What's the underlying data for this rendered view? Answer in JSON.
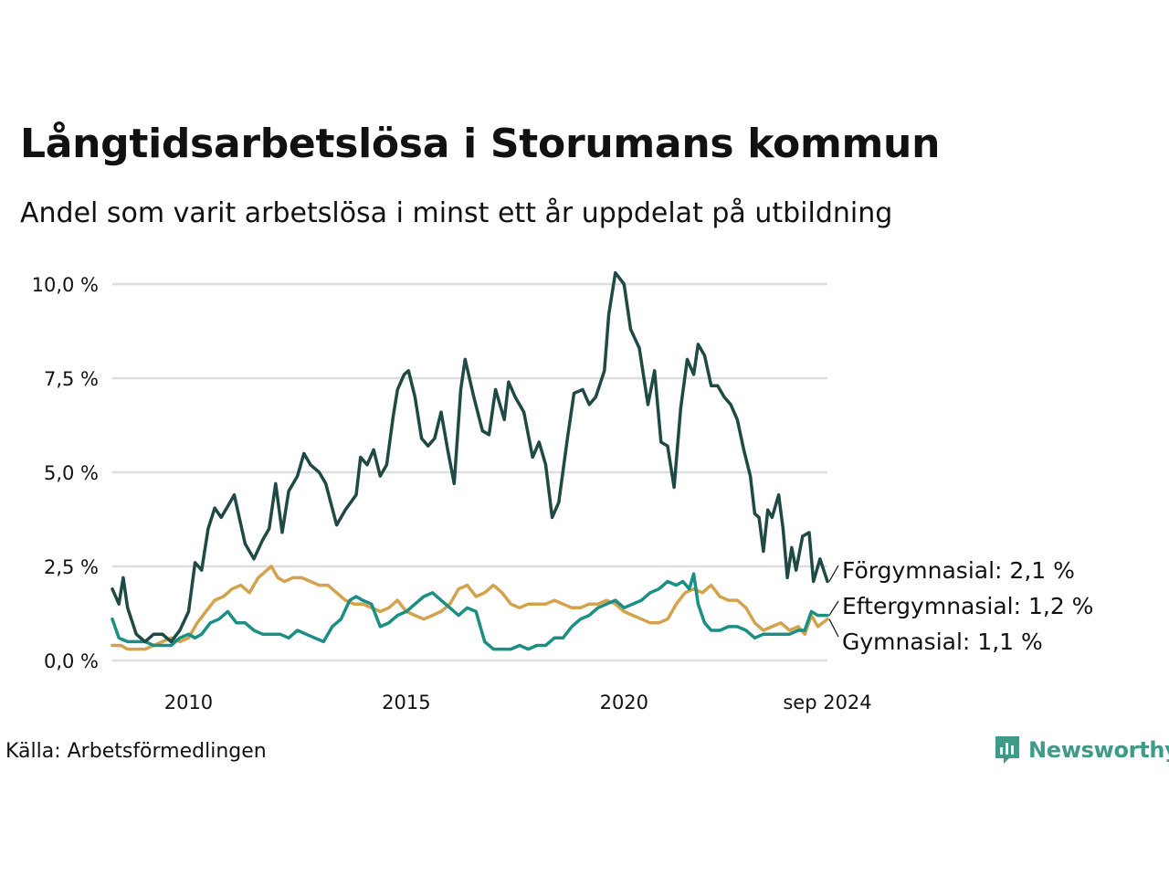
{
  "title": "Långtidsarbetslösa i Storumans kommun",
  "subtitle": "Andel som varit arbetslösa i minst ett år uppdelat på utbildning",
  "source": "Källa: Arbetsförmedlingen",
  "brand": "Newsworthy",
  "colors": {
    "brand": "#3f9a87",
    "grid": "#dddddd"
  },
  "chart_data": {
    "type": "line",
    "x_unit": "decimal year",
    "xlim": [
      2008.25,
      2024.67
    ],
    "xticks": [
      {
        "value": 2010,
        "label": "2010"
      },
      {
        "value": 2015,
        "label": "2015"
      },
      {
        "value": 2020,
        "label": "2020"
      },
      {
        "value": 2024.67,
        "label": "sep 2024"
      }
    ],
    "ylim": [
      0,
      10
    ],
    "yticks": [
      {
        "value": 0,
        "label": "0,0 %"
      },
      {
        "value": 2.5,
        "label": "2,5 %"
      },
      {
        "value": 5,
        "label": "5,0 %"
      },
      {
        "value": 7.5,
        "label": "7,5 %"
      },
      {
        "value": 10,
        "label": "10,0 %"
      }
    ],
    "grid": true,
    "series": [
      {
        "name": "Förgymnasial",
        "label": "Förgymnasial: 2,1 %",
        "color": "#1f4a44",
        "points": [
          [
            2008.25,
            1.9
          ],
          [
            2008.4,
            1.5
          ],
          [
            2008.5,
            2.2
          ],
          [
            2008.6,
            1.4
          ],
          [
            2008.8,
            0.7
          ],
          [
            2009.0,
            0.5
          ],
          [
            2009.2,
            0.7
          ],
          [
            2009.4,
            0.7
          ],
          [
            2009.6,
            0.5
          ],
          [
            2009.8,
            0.8
          ],
          [
            2010.0,
            1.3
          ],
          [
            2010.15,
            2.6
          ],
          [
            2010.3,
            2.4
          ],
          [
            2010.45,
            3.5
          ],
          [
            2010.6,
            4.05
          ],
          [
            2010.75,
            3.8
          ],
          [
            2010.9,
            4.1
          ],
          [
            2011.05,
            4.4
          ],
          [
            2011.3,
            3.1
          ],
          [
            2011.5,
            2.7
          ],
          [
            2011.7,
            3.2
          ],
          [
            2011.85,
            3.5
          ],
          [
            2012.0,
            4.7
          ],
          [
            2012.15,
            3.4
          ],
          [
            2012.3,
            4.5
          ],
          [
            2012.5,
            4.9
          ],
          [
            2012.65,
            5.5
          ],
          [
            2012.8,
            5.2
          ],
          [
            2013.0,
            5.0
          ],
          [
            2013.15,
            4.7
          ],
          [
            2013.4,
            3.6
          ],
          [
            2013.6,
            4.0
          ],
          [
            2013.85,
            4.4
          ],
          [
            2013.95,
            5.4
          ],
          [
            2014.1,
            5.2
          ],
          [
            2014.25,
            5.6
          ],
          [
            2014.4,
            4.9
          ],
          [
            2014.55,
            5.2
          ],
          [
            2014.7,
            6.5
          ],
          [
            2014.8,
            7.2
          ],
          [
            2014.95,
            7.6
          ],
          [
            2015.05,
            7.7
          ],
          [
            2015.2,
            7.0
          ],
          [
            2015.35,
            5.9
          ],
          [
            2015.5,
            5.7
          ],
          [
            2015.65,
            5.9
          ],
          [
            2015.8,
            6.6
          ],
          [
            2015.95,
            5.6
          ],
          [
            2016.1,
            4.7
          ],
          [
            2016.25,
            7.2
          ],
          [
            2016.35,
            8.0
          ],
          [
            2016.55,
            7.0
          ],
          [
            2016.75,
            6.1
          ],
          [
            2016.9,
            6.0
          ],
          [
            2017.05,
            7.2
          ],
          [
            2017.25,
            6.4
          ],
          [
            2017.35,
            7.4
          ],
          [
            2017.5,
            7.0
          ],
          [
            2017.7,
            6.6
          ],
          [
            2017.9,
            5.4
          ],
          [
            2018.05,
            5.8
          ],
          [
            2018.2,
            5.2
          ],
          [
            2018.35,
            3.8
          ],
          [
            2018.5,
            4.2
          ],
          [
            2018.7,
            5.9
          ],
          [
            2018.85,
            7.1
          ],
          [
            2019.05,
            7.2
          ],
          [
            2019.2,
            6.8
          ],
          [
            2019.35,
            7.0
          ],
          [
            2019.55,
            7.7
          ],
          [
            2019.65,
            9.2
          ],
          [
            2019.8,
            10.3
          ],
          [
            2020.0,
            10.0
          ],
          [
            2020.15,
            8.8
          ],
          [
            2020.35,
            8.3
          ],
          [
            2020.55,
            6.8
          ],
          [
            2020.7,
            7.7
          ],
          [
            2020.85,
            5.8
          ],
          [
            2021.0,
            5.7
          ],
          [
            2021.15,
            4.6
          ],
          [
            2021.3,
            6.7
          ],
          [
            2021.45,
            8.0
          ],
          [
            2021.6,
            7.6
          ],
          [
            2021.7,
            8.4
          ],
          [
            2021.85,
            8.1
          ],
          [
            2022.0,
            7.3
          ],
          [
            2022.15,
            7.3
          ],
          [
            2022.3,
            7.0
          ],
          [
            2022.45,
            6.8
          ],
          [
            2022.6,
            6.4
          ],
          [
            2022.75,
            5.6
          ],
          [
            2022.9,
            4.9
          ],
          [
            2023.0,
            3.9
          ],
          [
            2023.1,
            3.8
          ],
          [
            2023.2,
            2.9
          ],
          [
            2023.3,
            4.0
          ],
          [
            2023.4,
            3.8
          ],
          [
            2023.55,
            4.4
          ],
          [
            2023.65,
            3.5
          ],
          [
            2023.75,
            2.2
          ],
          [
            2023.85,
            3.0
          ],
          [
            2023.95,
            2.4
          ],
          [
            2024.1,
            3.3
          ],
          [
            2024.25,
            3.4
          ],
          [
            2024.35,
            2.1
          ],
          [
            2024.5,
            2.7
          ],
          [
            2024.67,
            2.1
          ]
        ]
      },
      {
        "name": "Eftergymnasial",
        "label": "Eftergymnasial: 1,2 %",
        "color": "#1a8f83",
        "points": [
          [
            2008.25,
            1.1
          ],
          [
            2008.4,
            0.6
          ],
          [
            2008.6,
            0.5
          ],
          [
            2008.8,
            0.5
          ],
          [
            2009.0,
            0.5
          ],
          [
            2009.2,
            0.4
          ],
          [
            2009.4,
            0.4
          ],
          [
            2009.6,
            0.4
          ],
          [
            2009.8,
            0.6
          ],
          [
            2010.0,
            0.7
          ],
          [
            2010.15,
            0.6
          ],
          [
            2010.3,
            0.7
          ],
          [
            2010.5,
            1.0
          ],
          [
            2010.7,
            1.1
          ],
          [
            2010.9,
            1.3
          ],
          [
            2011.1,
            1.0
          ],
          [
            2011.3,
            1.0
          ],
          [
            2011.5,
            0.8
          ],
          [
            2011.7,
            0.7
          ],
          [
            2011.9,
            0.7
          ],
          [
            2012.1,
            0.7
          ],
          [
            2012.3,
            0.6
          ],
          [
            2012.5,
            0.8
          ],
          [
            2012.7,
            0.7
          ],
          [
            2012.9,
            0.6
          ],
          [
            2013.1,
            0.5
          ],
          [
            2013.3,
            0.9
          ],
          [
            2013.5,
            1.1
          ],
          [
            2013.7,
            1.6
          ],
          [
            2013.85,
            1.7
          ],
          [
            2014.0,
            1.6
          ],
          [
            2014.2,
            1.5
          ],
          [
            2014.4,
            0.9
          ],
          [
            2014.6,
            1.0
          ],
          [
            2014.8,
            1.2
          ],
          [
            2015.0,
            1.3
          ],
          [
            2015.2,
            1.5
          ],
          [
            2015.4,
            1.7
          ],
          [
            2015.6,
            1.8
          ],
          [
            2015.8,
            1.6
          ],
          [
            2016.0,
            1.4
          ],
          [
            2016.2,
            1.2
          ],
          [
            2016.4,
            1.4
          ],
          [
            2016.6,
            1.3
          ],
          [
            2016.8,
            0.5
          ],
          [
            2017.0,
            0.3
          ],
          [
            2017.2,
            0.3
          ],
          [
            2017.4,
            0.3
          ],
          [
            2017.6,
            0.4
          ],
          [
            2017.8,
            0.3
          ],
          [
            2018.0,
            0.4
          ],
          [
            2018.2,
            0.4
          ],
          [
            2018.4,
            0.6
          ],
          [
            2018.6,
            0.6
          ],
          [
            2018.8,
            0.9
          ],
          [
            2019.0,
            1.1
          ],
          [
            2019.2,
            1.2
          ],
          [
            2019.4,
            1.4
          ],
          [
            2019.6,
            1.5
          ],
          [
            2019.8,
            1.6
          ],
          [
            2020.0,
            1.4
          ],
          [
            2020.2,
            1.5
          ],
          [
            2020.4,
            1.6
          ],
          [
            2020.6,
            1.8
          ],
          [
            2020.8,
            1.9
          ],
          [
            2021.0,
            2.1
          ],
          [
            2021.2,
            2.0
          ],
          [
            2021.35,
            2.1
          ],
          [
            2021.5,
            1.9
          ],
          [
            2021.6,
            2.3
          ],
          [
            2021.7,
            1.5
          ],
          [
            2021.85,
            1.0
          ],
          [
            2022.0,
            0.8
          ],
          [
            2022.2,
            0.8
          ],
          [
            2022.4,
            0.9
          ],
          [
            2022.6,
            0.9
          ],
          [
            2022.8,
            0.8
          ],
          [
            2023.0,
            0.6
          ],
          [
            2023.2,
            0.7
          ],
          [
            2023.4,
            0.7
          ],
          [
            2023.6,
            0.7
          ],
          [
            2023.8,
            0.7
          ],
          [
            2024.0,
            0.8
          ],
          [
            2024.15,
            0.8
          ],
          [
            2024.3,
            1.3
          ],
          [
            2024.45,
            1.2
          ],
          [
            2024.67,
            1.2
          ]
        ]
      },
      {
        "name": "Gymnasial",
        "label": "Gymnasial: 1,1 %",
        "color": "#d4a24c",
        "points": [
          [
            2008.25,
            0.4
          ],
          [
            2008.45,
            0.4
          ],
          [
            2008.6,
            0.3
          ],
          [
            2008.8,
            0.3
          ],
          [
            2009.0,
            0.3
          ],
          [
            2009.2,
            0.4
          ],
          [
            2009.4,
            0.5
          ],
          [
            2009.6,
            0.6
          ],
          [
            2009.8,
            0.5
          ],
          [
            2010.0,
            0.6
          ],
          [
            2010.2,
            1.0
          ],
          [
            2010.4,
            1.3
          ],
          [
            2010.6,
            1.6
          ],
          [
            2010.8,
            1.7
          ],
          [
            2011.0,
            1.9
          ],
          [
            2011.2,
            2.0
          ],
          [
            2011.4,
            1.8
          ],
          [
            2011.6,
            2.2
          ],
          [
            2011.8,
            2.4
          ],
          [
            2011.9,
            2.5
          ],
          [
            2012.05,
            2.2
          ],
          [
            2012.2,
            2.1
          ],
          [
            2012.4,
            2.2
          ],
          [
            2012.6,
            2.2
          ],
          [
            2012.8,
            2.1
          ],
          [
            2013.0,
            2.0
          ],
          [
            2013.2,
            2.0
          ],
          [
            2013.4,
            1.8
          ],
          [
            2013.6,
            1.6
          ],
          [
            2013.8,
            1.5
          ],
          [
            2014.0,
            1.5
          ],
          [
            2014.2,
            1.4
          ],
          [
            2014.4,
            1.3
          ],
          [
            2014.6,
            1.4
          ],
          [
            2014.8,
            1.6
          ],
          [
            2015.0,
            1.3
          ],
          [
            2015.2,
            1.2
          ],
          [
            2015.4,
            1.1
          ],
          [
            2015.6,
            1.2
          ],
          [
            2015.8,
            1.3
          ],
          [
            2016.0,
            1.5
          ],
          [
            2016.2,
            1.9
          ],
          [
            2016.4,
            2.0
          ],
          [
            2016.6,
            1.7
          ],
          [
            2016.8,
            1.8
          ],
          [
            2017.0,
            2.0
          ],
          [
            2017.2,
            1.8
          ],
          [
            2017.4,
            1.5
          ],
          [
            2017.6,
            1.4
          ],
          [
            2017.8,
            1.5
          ],
          [
            2018.0,
            1.5
          ],
          [
            2018.2,
            1.5
          ],
          [
            2018.4,
            1.6
          ],
          [
            2018.6,
            1.5
          ],
          [
            2018.8,
            1.4
          ],
          [
            2019.0,
            1.4
          ],
          [
            2019.2,
            1.5
          ],
          [
            2019.4,
            1.5
          ],
          [
            2019.6,
            1.6
          ],
          [
            2019.8,
            1.5
          ],
          [
            2020.0,
            1.3
          ],
          [
            2020.2,
            1.2
          ],
          [
            2020.4,
            1.1
          ],
          [
            2020.6,
            1.0
          ],
          [
            2020.8,
            1.0
          ],
          [
            2021.0,
            1.1
          ],
          [
            2021.2,
            1.5
          ],
          [
            2021.4,
            1.8
          ],
          [
            2021.6,
            1.9
          ],
          [
            2021.8,
            1.8
          ],
          [
            2022.0,
            2.0
          ],
          [
            2022.2,
            1.7
          ],
          [
            2022.4,
            1.6
          ],
          [
            2022.6,
            1.6
          ],
          [
            2022.8,
            1.4
          ],
          [
            2023.0,
            1.0
          ],
          [
            2023.2,
            0.8
          ],
          [
            2023.4,
            0.9
          ],
          [
            2023.6,
            1.0
          ],
          [
            2023.8,
            0.8
          ],
          [
            2024.0,
            0.9
          ],
          [
            2024.15,
            0.7
          ],
          [
            2024.3,
            1.2
          ],
          [
            2024.45,
            0.9
          ],
          [
            2024.67,
            1.1
          ]
        ]
      }
    ],
    "legend": "end-of-line labels"
  }
}
